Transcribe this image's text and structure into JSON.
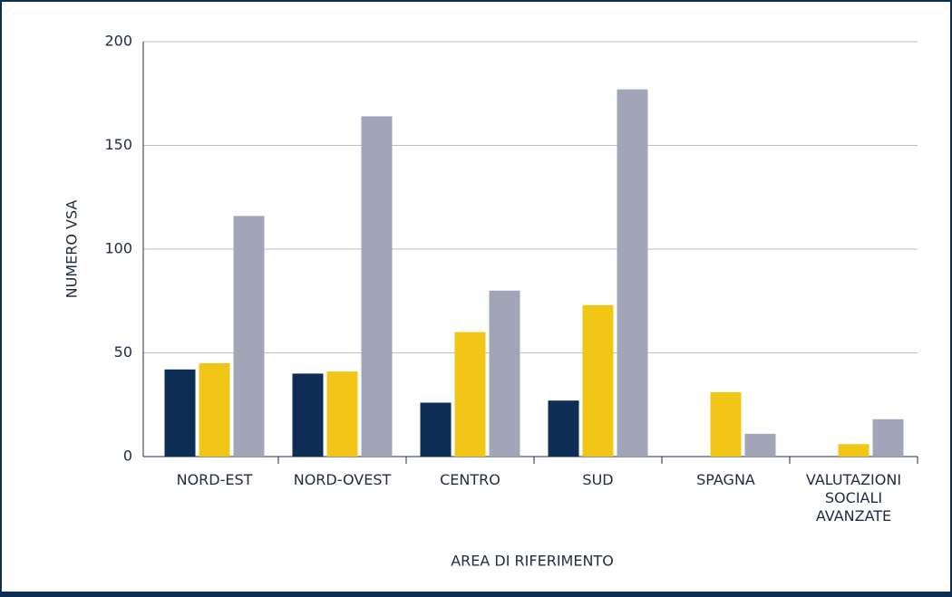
{
  "chart_data": {
    "type": "bar",
    "x_label": "AREA DI RIFERIMENTO",
    "y_label": "NUMERO VSA",
    "categories": [
      "NORD-EST",
      "NORD-OVEST",
      "CENTRO",
      "SUD",
      "SPAGNA",
      "VALUTAZIONI SOCIALI AVANZATE"
    ],
    "series": [
      {
        "color": "#0d2d54",
        "values": [
          42,
          40,
          26,
          27,
          null,
          null
        ]
      },
      {
        "color": "#f2c617",
        "values": [
          45,
          41,
          60,
          73,
          31,
          6
        ]
      },
      {
        "color": "#a2a5b8",
        "values": [
          116,
          164,
          80,
          177,
          11,
          18
        ]
      }
    ],
    "ylim": [
      0,
      200
    ],
    "yticks": [
      0,
      50,
      100,
      150,
      200
    ],
    "grid": true
  }
}
